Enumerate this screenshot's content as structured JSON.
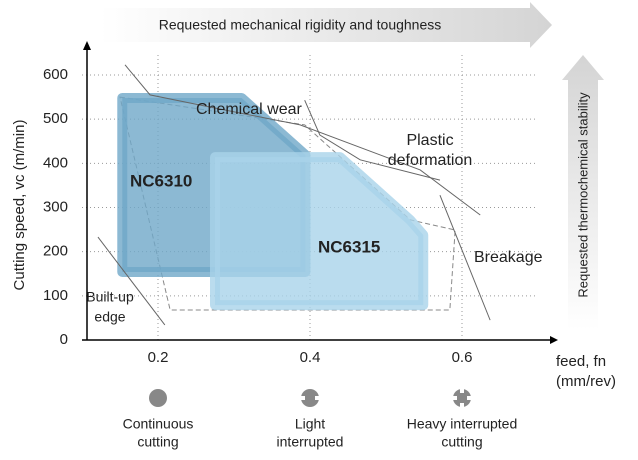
{
  "chart_data": {
    "type": "region",
    "banner_top": "Requested mechanical rigidity and toughness",
    "banner_right": "Requested thermochemical stability",
    "y_label": "Cutting speed, vc (m/min)",
    "x_label": [
      "feed, fn",
      "(mm/rev)"
    ],
    "xlim": [
      0.1,
      0.7
    ],
    "ylim": [
      0,
      600
    ],
    "xticks": [
      0.2,
      0.4,
      0.6
    ],
    "yticks": [
      0,
      100,
      200,
      300,
      400,
      500,
      600
    ],
    "grid": true,
    "regions": [
      {
        "name": "NC6310",
        "color": "#6fa8c8",
        "x": [
          0.153,
          0.153,
          0.31,
          0.394,
          0.394
        ],
        "y": [
          154,
          548,
          548,
          419,
          154
        ]
      },
      {
        "name": "NC6315",
        "color": "#a9d3ea",
        "x": [
          0.275,
          0.275,
          0.4395,
          0.5316,
          0.549,
          0.549
        ],
        "y": [
          79,
          414,
          414,
          272,
          238,
          79
        ]
      }
    ],
    "envelope": {
      "x": [
        0.15,
        0.393,
        0.532,
        0.591,
        0.584,
        0.216,
        0.15
      ],
      "y": [
        550,
        487,
        272,
        249,
        68,
        68,
        550
      ]
    },
    "boundaries": [
      {
        "x": [
          0.1566,
          0.1895,
          0.255,
          0.387,
          0.545,
          0.624
        ],
        "y": [
          623,
          555,
          532,
          487,
          385,
          283
        ]
      },
      {
        "x": [
          0.393,
          0.413,
          0.466,
          0.571
        ],
        "y": [
          543,
          464,
          408,
          362
        ]
      },
      {
        "x": [
          0.571,
          0.637
        ],
        "y": [
          328,
          45
        ]
      },
      {
        "x": [
          0.121,
          0.209
        ],
        "y": [
          233,
          34
        ]
      }
    ],
    "annotations": [
      [
        "Chemical wear"
      ],
      [
        "Plastic",
        "deformation"
      ],
      [
        "Breakage"
      ],
      [
        "Built-up",
        "edge"
      ]
    ],
    "cutting_types": [
      [
        "Continuous",
        "cutting"
      ],
      [
        "Light",
        "interrupted"
      ],
      [
        "Heavy interrupted",
        "cutting"
      ]
    ]
  }
}
